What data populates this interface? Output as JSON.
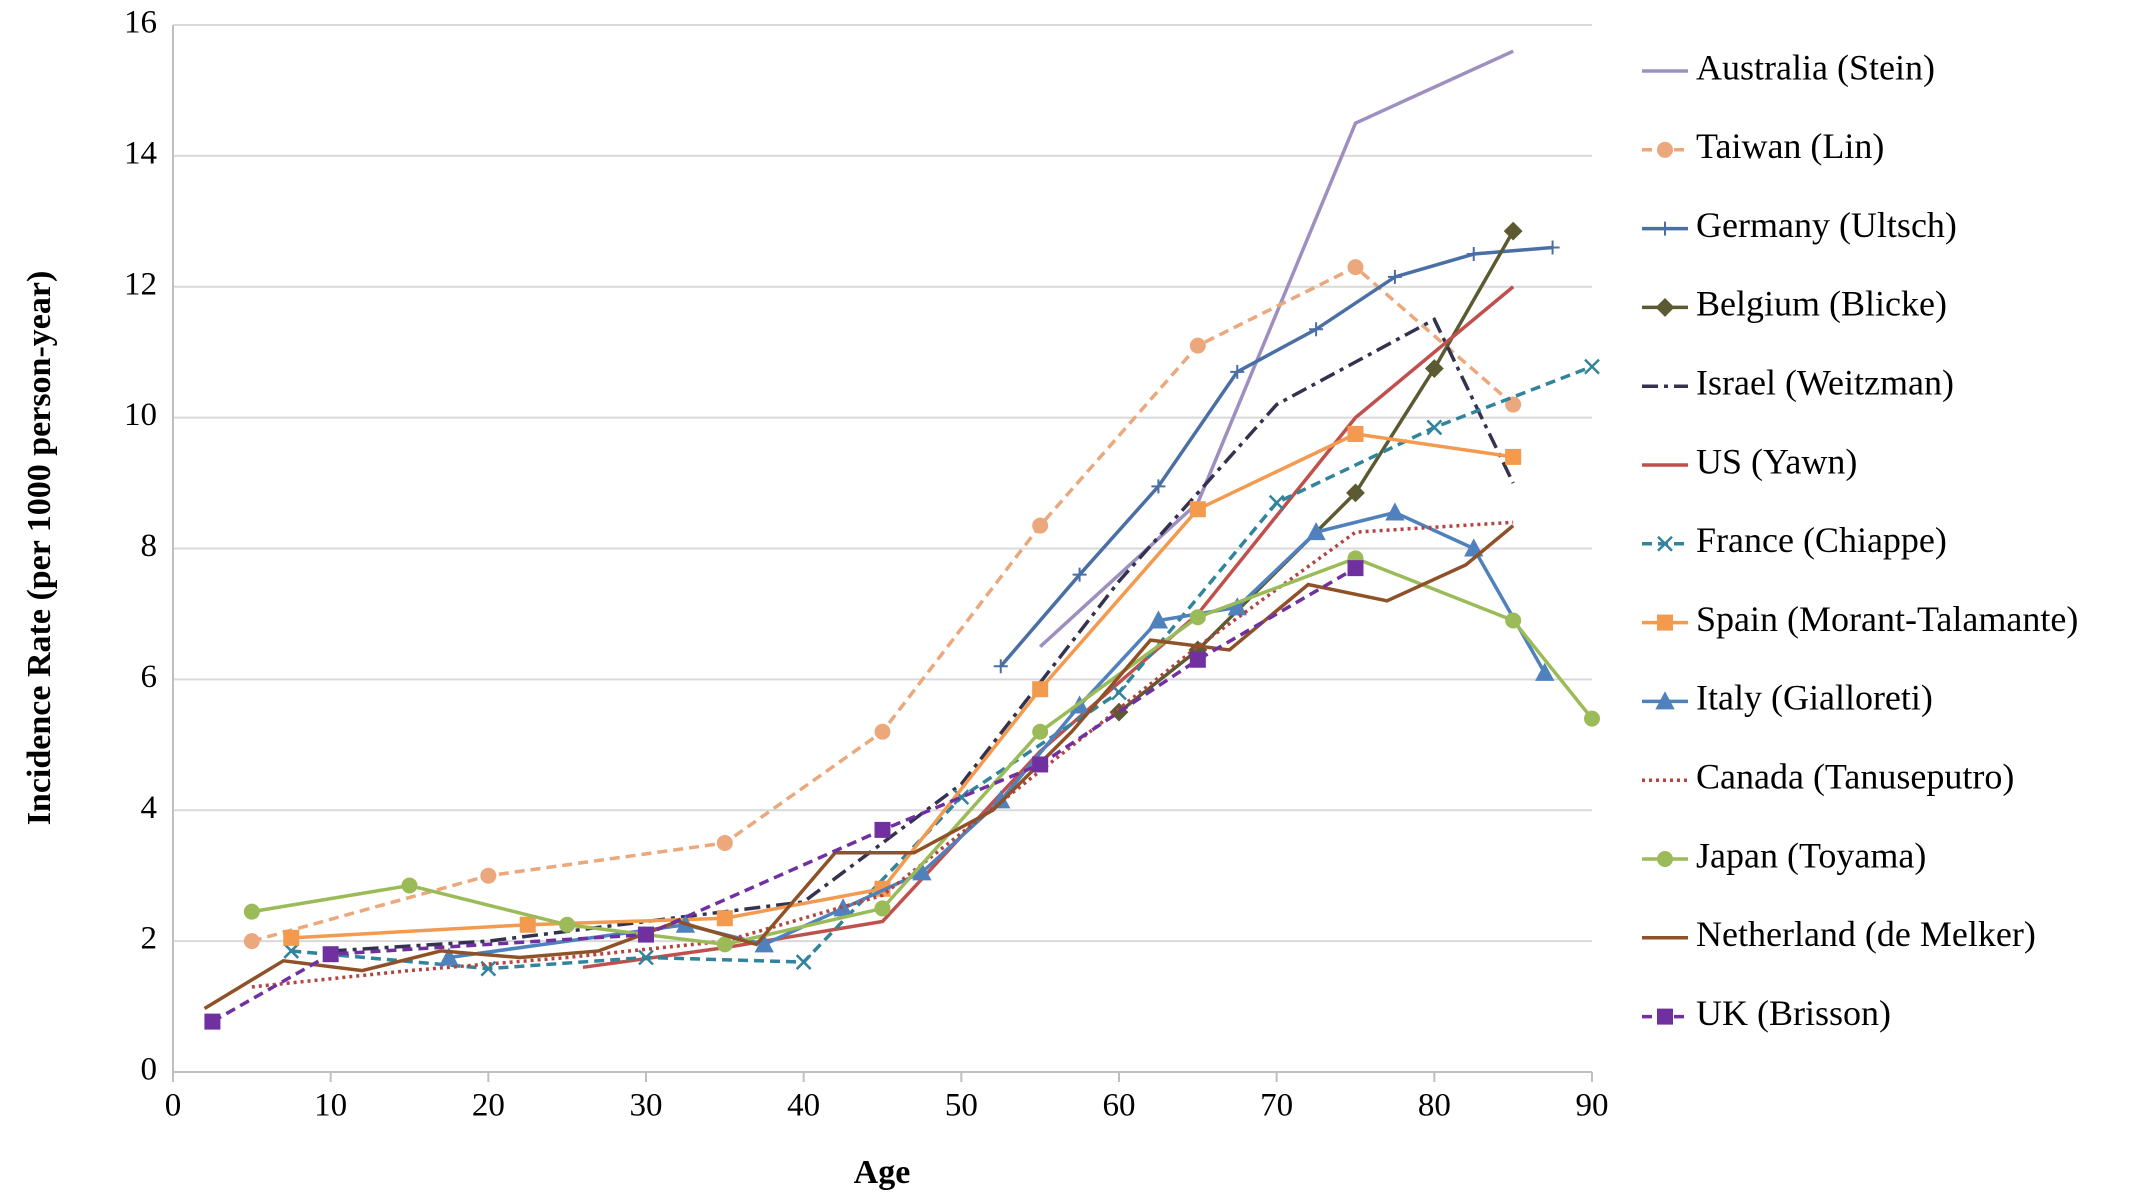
{
  "chart_data": {
    "type": "line",
    "x_label": "Age",
    "y_label": "Incidence Rate (per 1000 person-year)",
    "xlim": [
      0,
      90
    ],
    "xticks": [
      0,
      10,
      20,
      30,
      40,
      50,
      60,
      70,
      80,
      90
    ],
    "ylim": [
      0,
      16
    ],
    "yticks": [
      0,
      2,
      4,
      6,
      8,
      10,
      12,
      14,
      16
    ],
    "grid": true,
    "legend": "right",
    "series": [
      {
        "name": "Australia (Stein)",
        "color": "#9d8fc0",
        "dash": "solid",
        "marker": "none",
        "x": [
          55,
          65,
          75,
          85
        ],
        "values": [
          6.5,
          8.7,
          14.5,
          15.6
        ]
      },
      {
        "name": "Taiwan (Lin)",
        "color": "#eba87c",
        "dash": "dashed",
        "marker": "circle",
        "x": [
          5,
          20,
          35,
          45,
          55,
          65,
          75,
          85
        ],
        "values": [
          2.0,
          3.0,
          3.5,
          5.2,
          8.35,
          11.1,
          12.3,
          10.2
        ]
      },
      {
        "name": "Germany (Ultsch)",
        "color": "#4a6fa5",
        "dash": "solid",
        "marker": "plus",
        "x": [
          52.5,
          57.5,
          62.5,
          67.5,
          72.5,
          77.5,
          82.5,
          87.5
        ],
        "values": [
          6.2,
          7.6,
          8.95,
          10.7,
          11.35,
          12.15,
          12.5,
          12.6
        ]
      },
      {
        "name": "Belgium (Blicke)",
        "color": "#5c5a32",
        "dash": "solid",
        "marker": "diamond",
        "x": [
          60,
          65,
          75,
          80,
          85
        ],
        "values": [
          5.5,
          6.45,
          8.85,
          10.75,
          12.85
        ]
      },
      {
        "name": "Israel (Weitzman)",
        "color": "#33334f",
        "dash": "dashdot",
        "marker": "none",
        "x": [
          10,
          20,
          30,
          40,
          50,
          60,
          70,
          80,
          85
        ],
        "values": [
          1.85,
          2.0,
          2.3,
          2.6,
          4.4,
          7.5,
          10.2,
          11.5,
          9.0
        ]
      },
      {
        "name": "US (Yawn)",
        "color": "#c0504d",
        "dash": "solid",
        "marker": "none",
        "x": [
          26,
          35,
          45,
          55,
          65,
          75,
          85
        ],
        "values": [
          1.6,
          1.9,
          2.3,
          4.9,
          7.0,
          10.0,
          12.0
        ]
      },
      {
        "name": "France (Chiappe)",
        "color": "#31849b",
        "dash": "dashed",
        "marker": "x",
        "x": [
          7.5,
          20,
          30,
          40,
          50,
          60,
          70,
          80,
          90
        ],
        "values": [
          1.85,
          1.58,
          1.75,
          1.68,
          4.2,
          5.8,
          8.7,
          9.85,
          10.78
        ]
      },
      {
        "name": "Spain (Morant-Talamante)",
        "color": "#f39a4e",
        "dash": "solid",
        "marker": "square",
        "x": [
          7.5,
          22.5,
          35,
          45,
          55,
          65,
          75,
          85
        ],
        "values": [
          2.05,
          2.25,
          2.35,
          2.8,
          5.85,
          8.6,
          9.75,
          9.4
        ]
      },
      {
        "name": "Italy (Gialloreti)",
        "color": "#4f81bd",
        "dash": "solid",
        "marker": "triangle",
        "x": [
          17.5,
          32.5,
          37.5,
          42.5,
          47.5,
          52.5,
          57.5,
          62.5,
          67.5,
          72.5,
          77.5,
          82.5,
          87
        ],
        "values": [
          1.75,
          2.25,
          1.95,
          2.5,
          3.05,
          4.15,
          5.6,
          6.9,
          7.1,
          8.25,
          8.55,
          8.0,
          6.1
        ]
      },
      {
        "name": "Canada (Tanuseputro)",
        "color": "#b2453f",
        "dash": "dotted",
        "marker": "none",
        "x": [
          5,
          15,
          25,
          35,
          45,
          55,
          65,
          75,
          85
        ],
        "values": [
          1.3,
          1.55,
          1.75,
          2.0,
          2.7,
          4.6,
          6.5,
          8.25,
          8.4
        ]
      },
      {
        "name": "Japan (Toyama)",
        "color": "#9bbb59",
        "dash": "solid",
        "marker": "circle",
        "x": [
          5,
          15,
          25,
          35,
          45,
          55,
          65,
          75,
          85,
          90
        ],
        "values": [
          2.45,
          2.85,
          2.25,
          1.95,
          2.5,
          5.2,
          6.95,
          7.85,
          6.9,
          5.4
        ]
      },
      {
        "name": "Netherland (de Melker)",
        "color": "#8f5128",
        "dash": "solid",
        "marker": "none",
        "x": [
          2,
          7,
          12,
          17,
          22,
          27,
          32,
          37,
          42,
          47,
          52,
          57,
          62,
          67,
          72,
          77,
          82,
          85
        ],
        "values": [
          0.97,
          1.7,
          1.55,
          1.85,
          1.75,
          1.85,
          2.3,
          1.95,
          3.35,
          3.35,
          4.0,
          5.2,
          6.6,
          6.45,
          7.45,
          7.2,
          7.75,
          8.35
        ]
      },
      {
        "name": "UK (Brisson)",
        "color": "#7030a0",
        "dash": "dashed",
        "marker": "square",
        "x": [
          2.5,
          10,
          30,
          45,
          55,
          65,
          75
        ],
        "values": [
          0.77,
          1.8,
          2.1,
          3.7,
          4.7,
          6.3,
          7.7
        ]
      }
    ]
  }
}
